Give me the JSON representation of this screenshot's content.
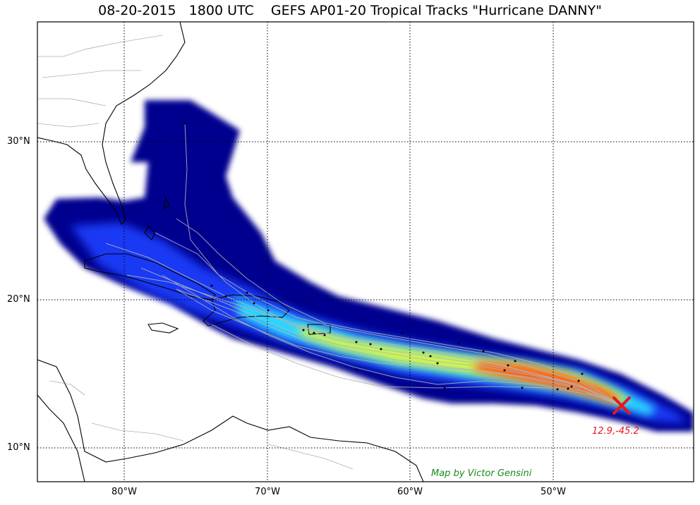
{
  "title": "08-20-2015   1800 UTC    GEFS AP01-20 Tropical Tracks \"Hurricane DANNY\"",
  "lat_labels": [
    "30°N",
    "20°N",
    "10°N"
  ],
  "lon_labels": [
    "80°W",
    "70°W",
    "60°W",
    "50°W"
  ],
  "storm": {
    "lat": 12.9,
    "lon": -45.2,
    "label": "12.9,-45.2",
    "marker": "x-marker"
  },
  "credit": "Map by Victor Gensini",
  "colors": {
    "marker": "#e8161f",
    "credit": "#1a8a1a",
    "label": "#e8161f"
  }
}
